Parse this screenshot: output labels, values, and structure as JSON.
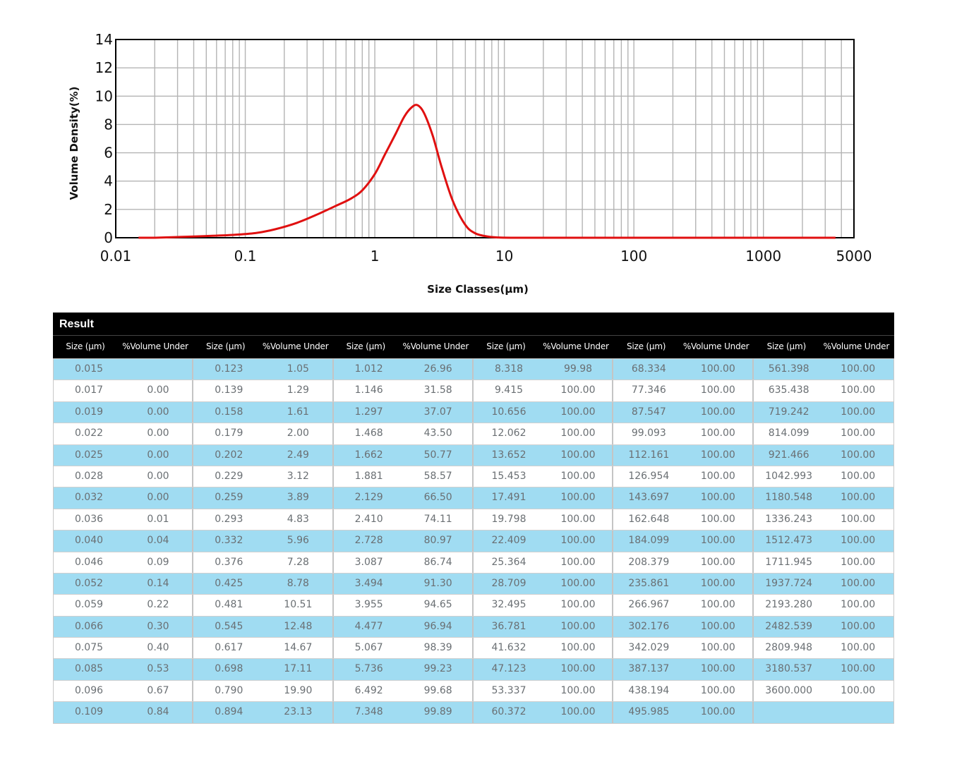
{
  "chart_data": {
    "type": "line",
    "title": "",
    "xlabel": "Size Classes(μm)",
    "ylabel": "Volume Density(%)",
    "xscale": "log",
    "xlim": [
      0.01,
      5000
    ],
    "ylim": [
      0,
      14
    ],
    "x_ticks": [
      "0.01",
      "0.1",
      "1",
      "10",
      "100",
      "1000",
      "5000"
    ],
    "y_ticks": [
      "0",
      "2",
      "4",
      "6",
      "8",
      "10",
      "12",
      "14"
    ],
    "grid": true,
    "series": [
      {
        "color": "#e01010",
        "x": [
          0.015,
          0.02,
          0.03,
          0.05,
          0.08,
          0.12,
          0.17,
          0.25,
          0.35,
          0.5,
          0.65,
          0.8,
          1.0,
          1.2,
          1.45,
          1.7,
          1.95,
          2.15,
          2.4,
          2.8,
          3.3,
          4.0,
          5.0,
          6.0,
          7.5,
          9.0,
          12,
          20,
          50,
          100,
          1000,
          3600
        ],
        "y": [
          0.0,
          0.0,
          0.05,
          0.12,
          0.2,
          0.33,
          0.6,
          1.05,
          1.6,
          2.25,
          2.75,
          3.35,
          4.5,
          5.9,
          7.35,
          8.6,
          9.25,
          9.35,
          8.8,
          7.2,
          4.9,
          2.6,
          0.9,
          0.3,
          0.08,
          0.02,
          0.0,
          0.0,
          0.0,
          0.0,
          0.0,
          0.0
        ]
      }
    ]
  },
  "table": {
    "title": "Result",
    "columns": [
      {
        "size": "Size (μm)",
        "volume": "%Volume Under"
      },
      {
        "size": "Size (μm)",
        "volume": "%Volume Under"
      },
      {
        "size": "Size (μm)",
        "volume": "%Volume Under"
      },
      {
        "size": "Size (μm)",
        "volume": "%Volume Under"
      },
      {
        "size": "Size (μm)",
        "volume": "%Volume Under"
      },
      {
        "size": "Size (μm)",
        "volume": "%Volume Under"
      }
    ],
    "rows": [
      [
        [
          "0.015",
          ""
        ],
        [
          "0.123",
          "1.05"
        ],
        [
          "1.012",
          "26.96"
        ],
        [
          "8.318",
          "99.98"
        ],
        [
          "68.334",
          "100.00"
        ],
        [
          "561.398",
          "100.00"
        ]
      ],
      [
        [
          "0.017",
          "0.00"
        ],
        [
          "0.139",
          "1.29"
        ],
        [
          "1.146",
          "31.58"
        ],
        [
          "9.415",
          "100.00"
        ],
        [
          "77.346",
          "100.00"
        ],
        [
          "635.438",
          "100.00"
        ]
      ],
      [
        [
          "0.019",
          "0.00"
        ],
        [
          "0.158",
          "1.61"
        ],
        [
          "1.297",
          "37.07"
        ],
        [
          "10.656",
          "100.00"
        ],
        [
          "87.547",
          "100.00"
        ],
        [
          "719.242",
          "100.00"
        ]
      ],
      [
        [
          "0.022",
          "0.00"
        ],
        [
          "0.179",
          "2.00"
        ],
        [
          "1.468",
          "43.50"
        ],
        [
          "12.062",
          "100.00"
        ],
        [
          "99.093",
          "100.00"
        ],
        [
          "814.099",
          "100.00"
        ]
      ],
      [
        [
          "0.025",
          "0.00"
        ],
        [
          "0.202",
          "2.49"
        ],
        [
          "1.662",
          "50.77"
        ],
        [
          "13.652",
          "100.00"
        ],
        [
          "112.161",
          "100.00"
        ],
        [
          "921.466",
          "100.00"
        ]
      ],
      [
        [
          "0.028",
          "0.00"
        ],
        [
          "0.229",
          "3.12"
        ],
        [
          "1.881",
          "58.57"
        ],
        [
          "15.453",
          "100.00"
        ],
        [
          "126.954",
          "100.00"
        ],
        [
          "1042.993",
          "100.00"
        ]
      ],
      [
        [
          "0.032",
          "0.00"
        ],
        [
          "0.259",
          "3.89"
        ],
        [
          "2.129",
          "66.50"
        ],
        [
          "17.491",
          "100.00"
        ],
        [
          "143.697",
          "100.00"
        ],
        [
          "1180.548",
          "100.00"
        ]
      ],
      [
        [
          "0.036",
          "0.01"
        ],
        [
          "0.293",
          "4.83"
        ],
        [
          "2.410",
          "74.11"
        ],
        [
          "19.798",
          "100.00"
        ],
        [
          "162.648",
          "100.00"
        ],
        [
          "1336.243",
          "100.00"
        ]
      ],
      [
        [
          "0.040",
          "0.04"
        ],
        [
          "0.332",
          "5.96"
        ],
        [
          "2.728",
          "80.97"
        ],
        [
          "22.409",
          "100.00"
        ],
        [
          "184.099",
          "100.00"
        ],
        [
          "1512.473",
          "100.00"
        ]
      ],
      [
        [
          "0.046",
          "0.09"
        ],
        [
          "0.376",
          "7.28"
        ],
        [
          "3.087",
          "86.74"
        ],
        [
          "25.364",
          "100.00"
        ],
        [
          "208.379",
          "100.00"
        ],
        [
          "1711.945",
          "100.00"
        ]
      ],
      [
        [
          "0.052",
          "0.14"
        ],
        [
          "0.425",
          "8.78"
        ],
        [
          "3.494",
          "91.30"
        ],
        [
          "28.709",
          "100.00"
        ],
        [
          "235.861",
          "100.00"
        ],
        [
          "1937.724",
          "100.00"
        ]
      ],
      [
        [
          "0.059",
          "0.22"
        ],
        [
          "0.481",
          "10.51"
        ],
        [
          "3.955",
          "94.65"
        ],
        [
          "32.495",
          "100.00"
        ],
        [
          "266.967",
          "100.00"
        ],
        [
          "2193.280",
          "100.00"
        ]
      ],
      [
        [
          "0.066",
          "0.30"
        ],
        [
          "0.545",
          "12.48"
        ],
        [
          "4.477",
          "96.94"
        ],
        [
          "36.781",
          "100.00"
        ],
        [
          "302.176",
          "100.00"
        ],
        [
          "2482.539",
          "100.00"
        ]
      ],
      [
        [
          "0.075",
          "0.40"
        ],
        [
          "0.617",
          "14.67"
        ],
        [
          "5.067",
          "98.39"
        ],
        [
          "41.632",
          "100.00"
        ],
        [
          "342.029",
          "100.00"
        ],
        [
          "2809.948",
          "100.00"
        ]
      ],
      [
        [
          "0.085",
          "0.53"
        ],
        [
          "0.698",
          "17.11"
        ],
        [
          "5.736",
          "99.23"
        ],
        [
          "47.123",
          "100.00"
        ],
        [
          "387.137",
          "100.00"
        ],
        [
          "3180.537",
          "100.00"
        ]
      ],
      [
        [
          "0.096",
          "0.67"
        ],
        [
          "0.790",
          "19.90"
        ],
        [
          "6.492",
          "99.68"
        ],
        [
          "53.337",
          "100.00"
        ],
        [
          "438.194",
          "100.00"
        ],
        [
          "3600.000",
          "100.00"
        ]
      ],
      [
        [
          "0.109",
          "0.84"
        ],
        [
          "0.894",
          "23.13"
        ],
        [
          "7.348",
          "99.89"
        ],
        [
          "60.372",
          "100.00"
        ],
        [
          "495.985",
          "100.00"
        ],
        [
          "",
          ""
        ]
      ]
    ]
  }
}
